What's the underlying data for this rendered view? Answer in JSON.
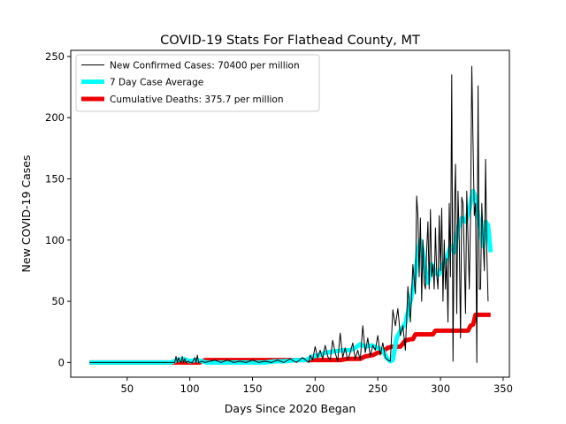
{
  "chart_data": {
    "type": "line",
    "title": "COVID-19 Stats For Flathead County, MT",
    "xlabel": "Days Since 2020 Began",
    "ylabel": "New COVID-19 Cases",
    "xlim": [
      5,
      355
    ],
    "ylim": [
      -12,
      255
    ],
    "xticks": [
      50,
      100,
      150,
      200,
      250,
      300,
      350
    ],
    "yticks": [
      0,
      50,
      100,
      150,
      200,
      250
    ],
    "grid": false,
    "legend_position": "top-left",
    "series": [
      {
        "name": "New Confirmed Cases: 70400 per million",
        "color": "#000000",
        "points": [
          [
            20,
            0
          ],
          [
            88,
            0
          ],
          [
            89,
            5
          ],
          [
            90,
            0
          ],
          [
            91,
            4
          ],
          [
            92,
            1
          ],
          [
            93,
            0
          ],
          [
            94,
            5
          ],
          [
            95,
            0
          ],
          [
            96,
            3
          ],
          [
            97,
            0
          ],
          [
            99,
            1
          ],
          [
            100,
            0
          ],
          [
            102,
            0
          ],
          [
            104,
            4
          ],
          [
            105,
            0
          ],
          [
            106,
            6
          ],
          [
            107,
            0
          ],
          [
            110,
            1
          ],
          [
            112,
            0
          ],
          [
            120,
            2
          ],
          [
            125,
            0
          ],
          [
            130,
            2
          ],
          [
            135,
            0
          ],
          [
            140,
            1
          ],
          [
            145,
            0
          ],
          [
            150,
            2
          ],
          [
            155,
            0
          ],
          [
            160,
            1
          ],
          [
            165,
            0
          ],
          [
            170,
            2
          ],
          [
            175,
            0
          ],
          [
            180,
            3
          ],
          [
            185,
            0
          ],
          [
            190,
            4
          ],
          [
            195,
            0
          ],
          [
            196,
            6
          ],
          [
            198,
            2
          ],
          [
            200,
            13
          ],
          [
            202,
            4
          ],
          [
            204,
            10
          ],
          [
            206,
            3
          ],
          [
            208,
            14
          ],
          [
            210,
            5
          ],
          [
            212,
            2
          ],
          [
            214,
            18
          ],
          [
            216,
            8
          ],
          [
            218,
            1
          ],
          [
            220,
            24
          ],
          [
            222,
            4
          ],
          [
            224,
            12
          ],
          [
            226,
            2
          ],
          [
            228,
            8
          ],
          [
            230,
            16
          ],
          [
            232,
            3
          ],
          [
            234,
            10
          ],
          [
            236,
            2
          ],
          [
            238,
            30
          ],
          [
            240,
            8
          ],
          [
            242,
            20
          ],
          [
            244,
            5
          ],
          [
            246,
            14
          ],
          [
            248,
            10
          ],
          [
            250,
            22
          ],
          [
            252,
            6
          ],
          [
            254,
            16
          ],
          [
            256,
            4
          ],
          [
            258,
            2
          ],
          [
            260,
            1
          ],
          [
            262,
            43
          ],
          [
            264,
            30
          ],
          [
            266,
            44
          ],
          [
            268,
            22
          ],
          [
            270,
            30
          ],
          [
            272,
            10
          ],
          [
            274,
            62
          ],
          [
            276,
            33
          ],
          [
            278,
            80
          ],
          [
            280,
            56
          ],
          [
            281,
            136
          ],
          [
            282,
            120
          ],
          [
            283,
            70
          ],
          [
            284,
            118
          ],
          [
            285,
            50
          ],
          [
            286,
            100
          ],
          [
            287,
            65
          ],
          [
            288,
            60
          ],
          [
            289,
            92
          ],
          [
            290,
            115
          ],
          [
            291,
            60
          ],
          [
            292,
            125
          ],
          [
            293,
            70
          ],
          [
            294,
            80
          ],
          [
            295,
            60
          ],
          [
            296,
            110
          ],
          [
            297,
            72
          ],
          [
            298,
            60
          ],
          [
            299,
            120
          ],
          [
            300,
            75
          ],
          [
            301,
            126
          ],
          [
            302,
            50
          ],
          [
            303,
            100
          ],
          [
            304,
            60
          ],
          [
            305,
            85
          ],
          [
            306,
            33
          ],
          [
            307,
            130
          ],
          [
            308,
            70
          ],
          [
            309,
            235
          ],
          [
            310,
            1
          ],
          [
            311,
            120
          ],
          [
            312,
            162
          ],
          [
            313,
            40
          ],
          [
            314,
            140
          ],
          [
            315,
            100
          ],
          [
            316,
            20
          ],
          [
            317,
            135
          ],
          [
            318,
            130
          ],
          [
            319,
            86
          ],
          [
            320,
            40
          ],
          [
            321,
            140
          ],
          [
            322,
            100
          ],
          [
            323,
            60
          ],
          [
            324,
            120
          ],
          [
            325,
            242
          ],
          [
            326,
            180
          ],
          [
            327,
            120
          ],
          [
            328,
            130
          ],
          [
            329,
            0
          ],
          [
            330,
            226
          ],
          [
            331,
            60
          ],
          [
            332,
            60
          ],
          [
            333,
            130
          ],
          [
            334,
            100
          ],
          [
            335,
            75
          ],
          [
            336,
            166
          ],
          [
            337,
            90
          ],
          [
            338,
            50
          ]
        ]
      },
      {
        "name": "7 Day Case Average",
        "color": "#00ffff",
        "points": [
          [
            20,
            0
          ],
          [
            85,
            0
          ],
          [
            90,
            2
          ],
          [
            95,
            3
          ],
          [
            100,
            1
          ],
          [
            105,
            2
          ],
          [
            110,
            1
          ],
          [
            113,
            0
          ],
          [
            120,
            0
          ],
          [
            130,
            0
          ],
          [
            140,
            0
          ],
          [
            150,
            0
          ],
          [
            160,
            0
          ],
          [
            168,
            1
          ],
          [
            175,
            1
          ],
          [
            185,
            2
          ],
          [
            193,
            2
          ],
          [
            198,
            5
          ],
          [
            203,
            6
          ],
          [
            208,
            8
          ],
          [
            215,
            9
          ],
          [
            222,
            10
          ],
          [
            228,
            10
          ],
          [
            232,
            12
          ],
          [
            236,
            15
          ],
          [
            240,
            13
          ],
          [
            245,
            14
          ],
          [
            250,
            12
          ],
          [
            254,
            10
          ],
          [
            257,
            4
          ],
          [
            260,
            1
          ],
          [
            262,
            2
          ],
          [
            265,
            20
          ],
          [
            268,
            26
          ],
          [
            272,
            32
          ],
          [
            276,
            50
          ],
          [
            279,
            65
          ],
          [
            282,
            90
          ],
          [
            284,
            100
          ],
          [
            286,
            90
          ],
          [
            288,
            75
          ],
          [
            290,
            65
          ],
          [
            293,
            80
          ],
          [
            296,
            73
          ],
          [
            299,
            72
          ],
          [
            302,
            80
          ],
          [
            305,
            85
          ],
          [
            308,
            95
          ],
          [
            311,
            90
          ],
          [
            314,
            110
          ],
          [
            317,
            118
          ],
          [
            320,
            115
          ],
          [
            323,
            125
          ],
          [
            326,
            140
          ],
          [
            328,
            135
          ],
          [
            330,
            120
          ],
          [
            332,
            110
          ],
          [
            334,
            95
          ],
          [
            336,
            115
          ],
          [
            338,
            112
          ],
          [
            340,
            90
          ]
        ]
      },
      {
        "name": "Cumulative Deaths: 375.7 per million",
        "color": "#ee0000",
        "points": [
          [
            20,
            0
          ],
          [
            108,
            0
          ],
          [
            110,
            1
          ],
          [
            112,
            2
          ],
          [
            170,
            2
          ],
          [
            200,
            2
          ],
          [
            210,
            2
          ],
          [
            220,
            2
          ],
          [
            226,
            3
          ],
          [
            236,
            3
          ],
          [
            240,
            5
          ],
          [
            246,
            6
          ],
          [
            250,
            8
          ],
          [
            254,
            9
          ],
          [
            258,
            12
          ],
          [
            262,
            13
          ],
          [
            268,
            13
          ],
          [
            272,
            18
          ],
          [
            276,
            19
          ],
          [
            278,
            19
          ],
          [
            280,
            23
          ],
          [
            290,
            23
          ],
          [
            294,
            23
          ],
          [
            296,
            26
          ],
          [
            304,
            26
          ],
          [
            322,
            26
          ],
          [
            324,
            30
          ],
          [
            326,
            31
          ],
          [
            328,
            39
          ],
          [
            340,
            39
          ]
        ]
      }
    ]
  }
}
